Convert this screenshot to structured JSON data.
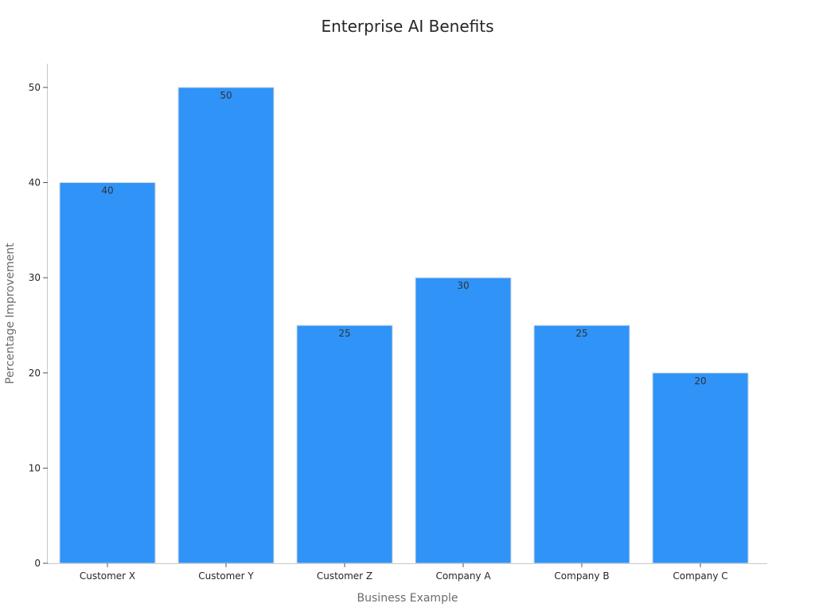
{
  "chart_data": {
    "type": "bar",
    "title": "Enterprise AI Benefits",
    "xlabel": "Business Example",
    "ylabel": "Percentage Improvement",
    "categories": [
      "Customer X",
      "Customer Y",
      "Customer Z",
      "Company A",
      "Company B",
      "Company C"
    ],
    "values": [
      40,
      50,
      25,
      30,
      25,
      20
    ],
    "data_labels": [
      "40",
      "50",
      "25",
      "30",
      "25",
      "20"
    ],
    "ylim": [
      0,
      52.5
    ],
    "yticks": [
      0,
      10,
      20,
      30,
      40,
      50
    ],
    "grid": false,
    "bar_color": "#2f93f8"
  }
}
